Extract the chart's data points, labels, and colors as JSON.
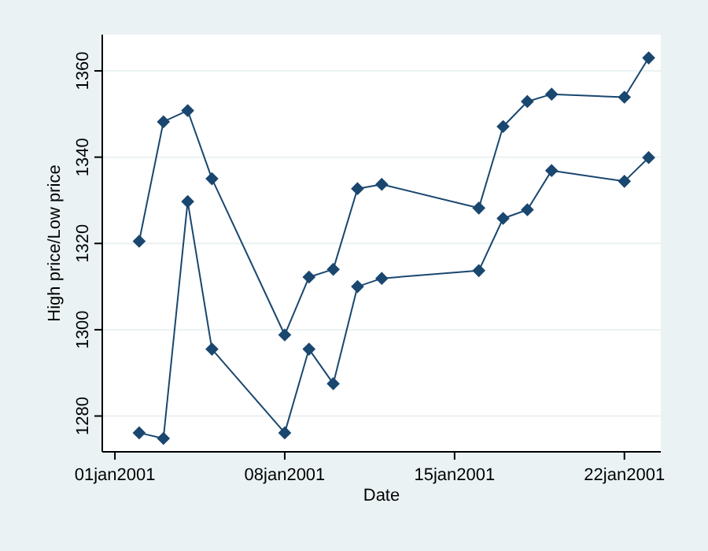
{
  "chart_data": {
    "type": "line",
    "xlabel": "Date",
    "ylabel": "High price/Low price",
    "x": [
      "2001-01-02",
      "2001-01-03",
      "2001-01-04",
      "2001-01-05",
      "2001-01-08",
      "2001-01-09",
      "2001-01-10",
      "2001-01-11",
      "2001-01-12",
      "2001-01-16",
      "2001-01-17",
      "2001-01-18",
      "2001-01-19",
      "2001-01-22",
      "2001-01-23"
    ],
    "series": [
      {
        "color": "#1a476f",
        "values": [
          1320.5,
          1348.2,
          1350.8,
          1335.0,
          1298.8,
          1312.2,
          1314.0,
          1332.7,
          1333.7,
          1328.2,
          1347.1,
          1352.9,
          1354.6,
          1353.9,
          1363.0
        ]
      },
      {
        "color": "#1a476f",
        "values": [
          1276.1,
          1274.8,
          1329.7,
          1295.5,
          1276.1,
          1295.5,
          1287.5,
          1310.0,
          1311.9,
          1313.7,
          1325.8,
          1327.8,
          1336.9,
          1334.4,
          1339.9
        ]
      }
    ],
    "xlim": [
      "2000-12-31T11:30",
      "2001-01-23T12:00"
    ],
    "xticks": [
      {
        "value": "2001-01-01",
        "label": "01jan2001"
      },
      {
        "value": "2001-01-08",
        "label": "08jan2001"
      },
      {
        "value": "2001-01-15",
        "label": "15jan2001"
      },
      {
        "value": "2001-01-22",
        "label": "22jan2001"
      }
    ],
    "ylim": [
      1271.7,
      1368.4
    ],
    "yticks": [
      1280,
      1300,
      1320,
      1340,
      1360
    ],
    "grid": "y",
    "marker": "diamond",
    "line_style": "solid"
  }
}
